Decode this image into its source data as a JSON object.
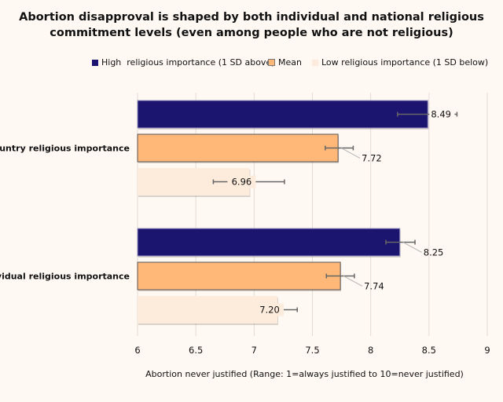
{
  "chart_data": {
    "type": "bar",
    "orientation": "horizontal",
    "title": "Abortion disapproval is shaped by both individual and national religious commitment levels (even among people who are not religious)",
    "title_lines": [
      "Abortion disapproval is shaped by both individual and national religious",
      "commitment levels (even among people who are not religious)"
    ],
    "xlabel": "Abortion never justified (Range: 1=always justified to 10=never justified)",
    "ylabel": "",
    "xlim": [
      6,
      9
    ],
    "xticks": [
      "6",
      "6.5",
      "7",
      "7.5",
      "8",
      "8.5",
      "9"
    ],
    "grid": true,
    "legend_position": "top",
    "categories": [
      "Country religious importance",
      "Individual religious importance"
    ],
    "series": [
      {
        "name": "High  religious importance (1 SD above)",
        "color": "#1c1570",
        "values": [
          8.49,
          8.25
        ],
        "labels": [
          "8.49",
          "8.25"
        ],
        "ci_low": [
          8.23,
          8.13
        ],
        "ci_high": [
          8.74,
          8.38
        ]
      },
      {
        "name": "Mean",
        "color": "#ffb877",
        "values": [
          7.72,
          7.74
        ],
        "labels": [
          "7.72",
          "7.74"
        ],
        "ci_low": [
          7.61,
          7.62
        ],
        "ci_high": [
          7.85,
          7.86
        ]
      },
      {
        "name": "Low religious importance (1 SD below)",
        "color": "#fdebdc",
        "values": [
          6.96,
          7.2
        ],
        "labels": [
          "6.96",
          "7.20"
        ],
        "ci_low": [
          6.65,
          7.04
        ],
        "ci_high": [
          7.26,
          7.37
        ]
      }
    ]
  }
}
